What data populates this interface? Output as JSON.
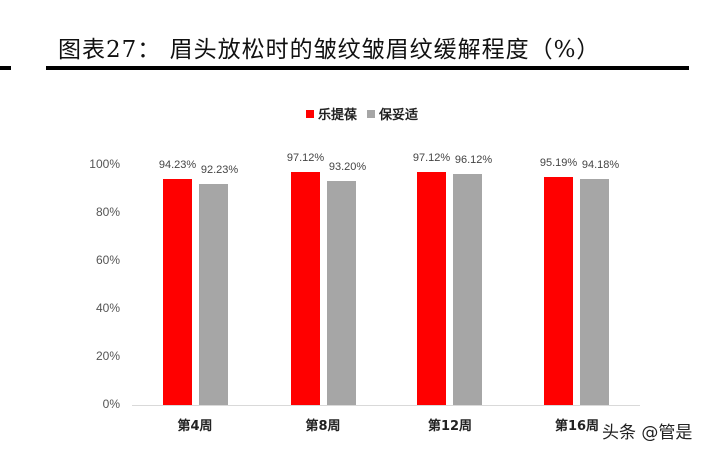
{
  "header": {
    "title": "图表27：  眉头放松时的皱纹皱眉纹缓解程度（%）"
  },
  "legend": {
    "items": [
      {
        "label": "乐提葆",
        "color": "#ff0000"
      },
      {
        "label": "保妥适",
        "color": "#a6a6a6"
      }
    ]
  },
  "axis": {
    "yticks": [
      "100%",
      "80%",
      "60%",
      "40%",
      "20%",
      "0%"
    ]
  },
  "chart_data": {
    "type": "bar",
    "title": "眉头放松时的皱纹皱眉纹缓解程度（%）",
    "categories": [
      "第4周",
      "第8周",
      "第12周",
      "第16周"
    ],
    "series": [
      {
        "name": "乐提葆",
        "color": "#ff0000",
        "values": [
          94.23,
          97.12,
          97.12,
          95.19
        ],
        "labels": [
          "94.23%",
          "97.12%",
          "97.12%",
          "95.19%"
        ]
      },
      {
        "name": "保妥适",
        "color": "#a6a6a6",
        "values": [
          92.23,
          93.2,
          96.12,
          94.18
        ],
        "labels": [
          "92.23%",
          "93.20%",
          "96.12%",
          "94.18%"
        ]
      }
    ],
    "xlabel": "",
    "ylabel": "",
    "ylim": [
      0,
      100
    ],
    "yticks": [
      0,
      20,
      40,
      60,
      80,
      100
    ],
    "grid": false,
    "legend_position": "top"
  },
  "watermark": "头条 @管是"
}
